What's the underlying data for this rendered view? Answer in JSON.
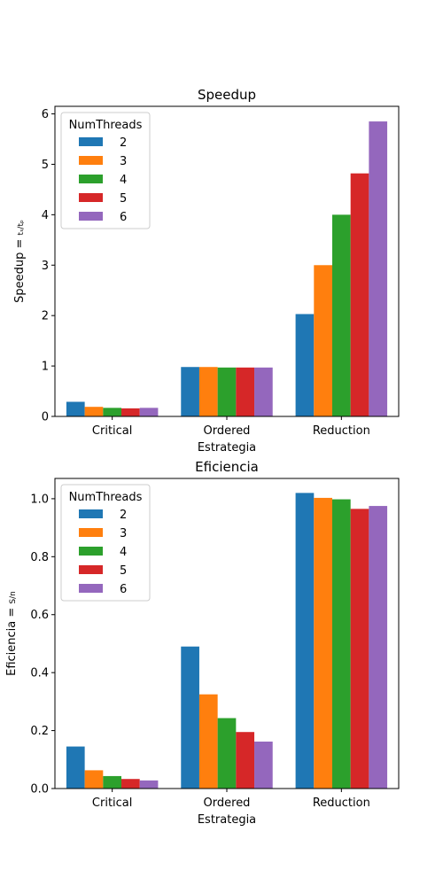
{
  "chart_data": [
    {
      "type": "bar",
      "title": "Speedup",
      "xlabel": "Estrategia",
      "ylabel": "Speedup = ",
      "ylabel_formula": "tₛ/tₚ",
      "categories": [
        "Critical",
        "Ordered",
        "Reduction"
      ],
      "ylim": [
        0,
        6.15
      ],
      "yticks": [
        "0",
        "1",
        "2",
        "3",
        "4",
        "5",
        "6"
      ],
      "ytick_values": [
        0,
        1,
        2,
        3,
        4,
        5,
        6
      ],
      "legend": {
        "title": "NumThreads",
        "position": "upper-left"
      },
      "series": [
        {
          "name": "2",
          "color": "#1f77b4",
          "values": [
            0.29,
            0.98,
            2.03
          ]
        },
        {
          "name": "3",
          "color": "#ff7f0e",
          "values": [
            0.19,
            0.98,
            3.0
          ]
        },
        {
          "name": "4",
          "color": "#2ca02c",
          "values": [
            0.17,
            0.97,
            4.0
          ]
        },
        {
          "name": "5",
          "color": "#d62728",
          "values": [
            0.16,
            0.97,
            4.82
          ]
        },
        {
          "name": "6",
          "color": "#9467bd",
          "values": [
            0.17,
            0.97,
            5.85
          ]
        }
      ]
    },
    {
      "type": "bar",
      "title": "Eficiencia",
      "xlabel": "Estrategia",
      "ylabel": "Eficiencia = ",
      "ylabel_formula": "S/n",
      "categories": [
        "Critical",
        "Ordered",
        "Reduction"
      ],
      "ylim": [
        0,
        1.07
      ],
      "yticks": [
        "0.0",
        "0.2",
        "0.4",
        "0.6",
        "0.8",
        "1.0"
      ],
      "ytick_values": [
        0,
        0.2,
        0.4,
        0.6,
        0.8,
        1.0
      ],
      "legend": {
        "title": "NumThreads",
        "position": "upper-left"
      },
      "series": [
        {
          "name": "2",
          "color": "#1f77b4",
          "values": [
            0.145,
            0.49,
            1.02
          ]
        },
        {
          "name": "3",
          "color": "#ff7f0e",
          "values": [
            0.063,
            0.325,
            1.003
          ]
        },
        {
          "name": "4",
          "color": "#2ca02c",
          "values": [
            0.043,
            0.243,
            0.998
          ]
        },
        {
          "name": "5",
          "color": "#d62728",
          "values": [
            0.033,
            0.195,
            0.965
          ]
        },
        {
          "name": "6",
          "color": "#9467bd",
          "values": [
            0.028,
            0.162,
            0.975
          ]
        }
      ]
    }
  ]
}
